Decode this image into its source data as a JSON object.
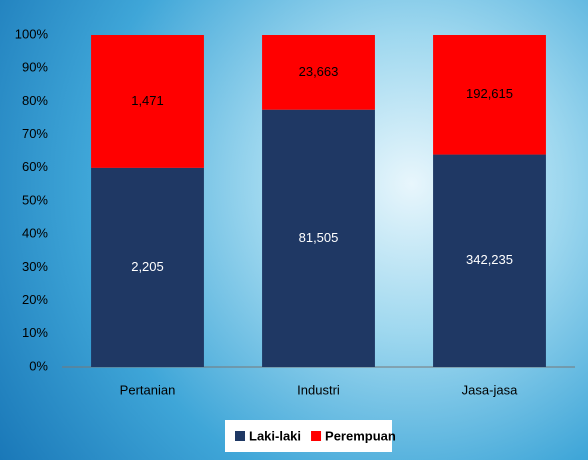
{
  "chart_data": {
    "type": "bar",
    "stacking": "percent",
    "categories": [
      "Pertanian",
      "Industri",
      "Jasa-jasa"
    ],
    "series": [
      {
        "name": "Laki-laki",
        "color": "#1f3864",
        "values": [
          2205,
          81505,
          342235
        ],
        "value_labels": [
          "2,205",
          "81,505",
          "342,235"
        ]
      },
      {
        "name": "Perempuan",
        "color": "#ff0000",
        "values": [
          1471,
          23663,
          192615
        ],
        "value_labels": [
          "1,471",
          "23,663",
          "192,615"
        ]
      }
    ],
    "ylim": [
      0,
      100
    ],
    "yticks": [
      {
        "value": 0,
        "label": "0%"
      },
      {
        "value": 10,
        "label": "10%"
      },
      {
        "value": 20,
        "label": "20%"
      },
      {
        "value": 30,
        "label": "30%"
      },
      {
        "value": 40,
        "label": "40%"
      },
      {
        "value": 50,
        "label": "50%"
      },
      {
        "value": 60,
        "label": "60%"
      },
      {
        "value": 70,
        "label": "70%"
      },
      {
        "value": 80,
        "label": "80%"
      },
      {
        "value": 90,
        "label": "90%"
      },
      {
        "value": 100,
        "label": "100%"
      }
    ],
    "legend": "bottom"
  }
}
